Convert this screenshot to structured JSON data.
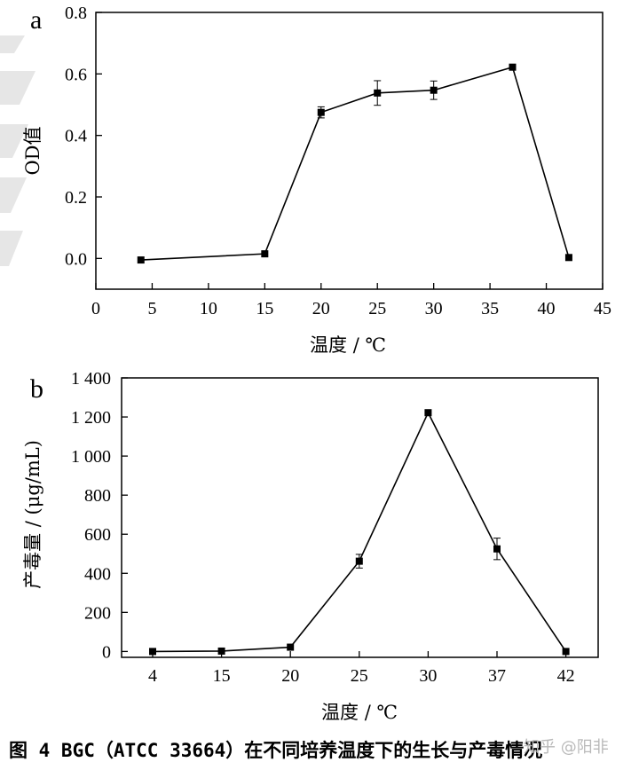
{
  "caption": "图 4 BGC（ATCC 33664）在不同培养温度下的生长与产毒情况",
  "watermark": "知乎 @阳非",
  "chart_data": [
    {
      "type": "line",
      "panel": "a",
      "xlabel": "温度 / ℃",
      "ylabel": "OD值",
      "xlim": [
        0,
        45
      ],
      "ylim": [
        -0.1,
        0.8
      ],
      "x_ticks": [
        "0",
        "5",
        "10",
        "15",
        "20",
        "25",
        "30",
        "35",
        "40",
        "45"
      ],
      "y_ticks": [
        "0.0",
        "0.2",
        "0.4",
        "0.6",
        "0.8"
      ],
      "grid": false,
      "legend": "none",
      "series": [
        {
          "x": [
            4,
            15,
            20,
            25,
            30,
            37,
            42
          ],
          "values": [
            -0.005,
            0.015,
            0.475,
            0.538,
            0.547,
            0.622,
            0.003
          ],
          "errors": [
            0.0,
            0.0,
            0.018,
            0.04,
            0.03,
            0.0,
            0.0
          ]
        }
      ]
    },
    {
      "type": "line",
      "panel": "b",
      "xlabel": "温度 / ℃",
      "ylabel": "产毒量 / (μg/mL)",
      "categories": [
        "4",
        "15",
        "20",
        "25",
        "30",
        "37",
        "42"
      ],
      "ylim": [
        -30,
        1400
      ],
      "y_ticks": [
        "0",
        "200",
        "400",
        "600",
        "800",
        "1 000",
        "1 200",
        "1 400"
      ],
      "grid": false,
      "legend": "none",
      "series": [
        {
          "values": [
            0,
            2,
            22,
            462,
            1222,
            525,
            0
          ],
          "errors": [
            0,
            0,
            0,
            35,
            0,
            55,
            0
          ]
        }
      ]
    }
  ]
}
